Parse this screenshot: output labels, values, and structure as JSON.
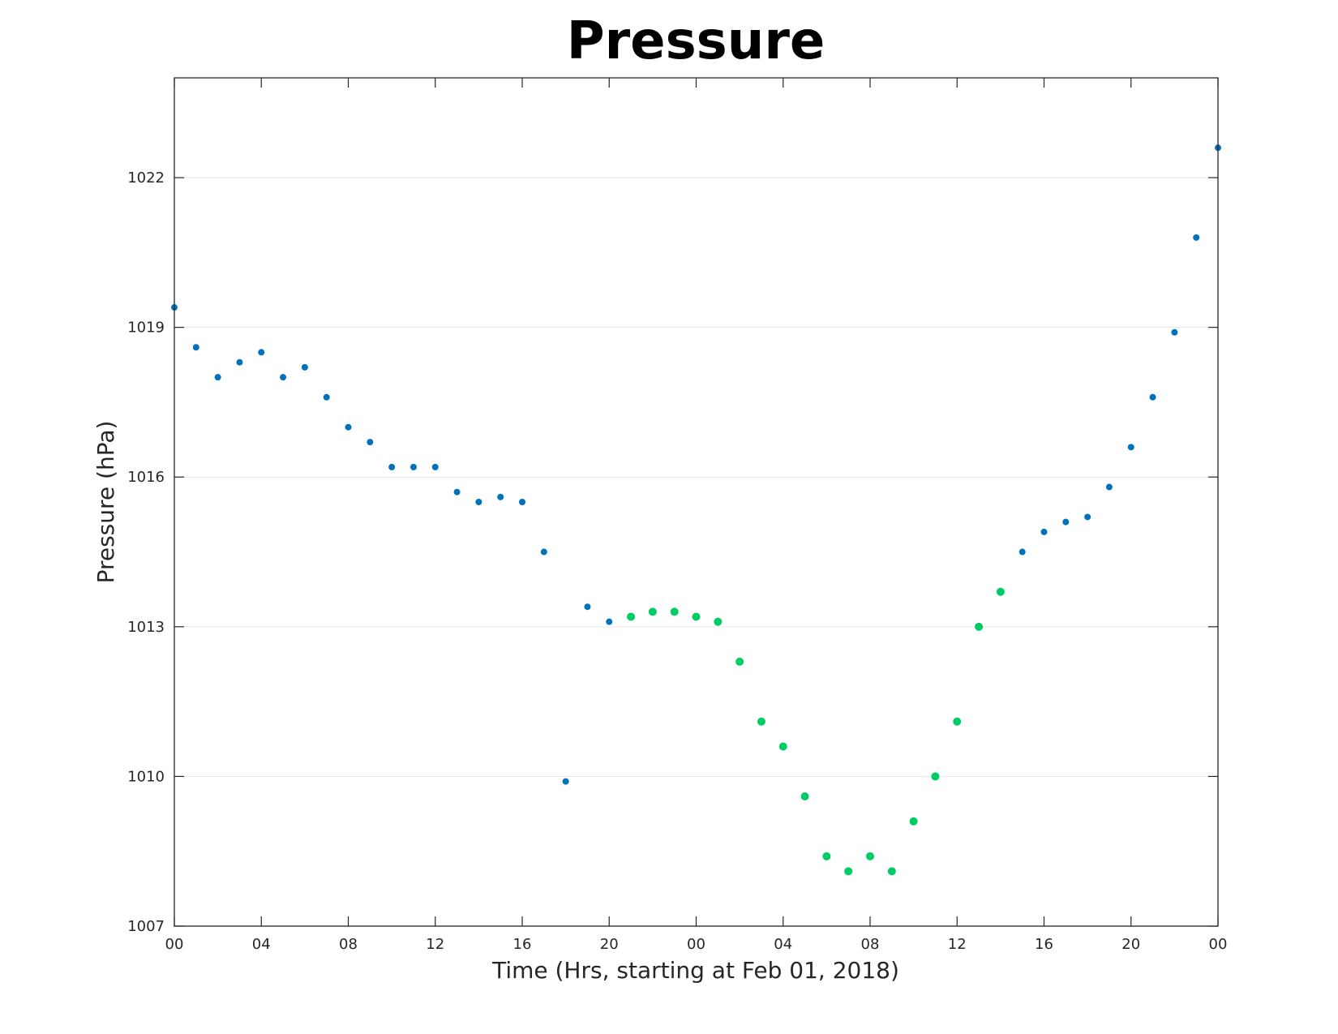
{
  "chart_data": {
    "type": "scatter",
    "title": "Pressure",
    "xlabel": "Time (Hrs, starting at Feb 01, 2018)",
    "ylabel": "Pressure (hPa)",
    "xlim": [
      0,
      48
    ],
    "ylim": [
      1007,
      1024
    ],
    "grid": "horizontal",
    "x_ticks": [
      {
        "value": 0,
        "label": "00"
      },
      {
        "value": 4,
        "label": "04"
      },
      {
        "value": 8,
        "label": "08"
      },
      {
        "value": 12,
        "label": "12"
      },
      {
        "value": 16,
        "label": "16"
      },
      {
        "value": 20,
        "label": "20"
      },
      {
        "value": 24,
        "label": "00"
      },
      {
        "value": 28,
        "label": "04"
      },
      {
        "value": 32,
        "label": "08"
      },
      {
        "value": 36,
        "label": "12"
      },
      {
        "value": 40,
        "label": "16"
      },
      {
        "value": 44,
        "label": "20"
      },
      {
        "value": 48,
        "label": "00"
      }
    ],
    "y_ticks": [
      {
        "value": 1007,
        "label": "1007"
      },
      {
        "value": 1010,
        "label": "1010"
      },
      {
        "value": 1013,
        "label": "1013"
      },
      {
        "value": 1016,
        "label": "1016"
      },
      {
        "value": 1019,
        "label": "1019"
      },
      {
        "value": 1022,
        "label": "1022"
      }
    ],
    "series": [
      {
        "color": "#0072BD",
        "points": [
          [
            0,
            1019.4
          ],
          [
            1,
            1018.6
          ],
          [
            2,
            1018.0
          ],
          [
            3,
            1018.3
          ],
          [
            4,
            1018.5
          ],
          [
            5,
            1018.0
          ],
          [
            6,
            1018.2
          ],
          [
            7,
            1017.6
          ],
          [
            8,
            1017.0
          ],
          [
            9,
            1016.7
          ],
          [
            10,
            1016.2
          ],
          [
            11,
            1016.2
          ],
          [
            12,
            1016.2
          ],
          [
            13,
            1015.7
          ],
          [
            14,
            1015.5
          ],
          [
            15,
            1015.6
          ],
          [
            16,
            1015.5
          ],
          [
            17,
            1014.5
          ],
          [
            18,
            1009.9
          ],
          [
            19,
            1013.4
          ],
          [
            20,
            1013.1
          ],
          [
            39,
            1014.5
          ],
          [
            40,
            1014.9
          ],
          [
            41,
            1015.1
          ],
          [
            42,
            1015.2
          ],
          [
            43,
            1015.8
          ],
          [
            44,
            1016.6
          ],
          [
            45,
            1017.6
          ],
          [
            46,
            1018.9
          ],
          [
            47,
            1020.8
          ],
          [
            48,
            1022.6
          ]
        ]
      },
      {
        "color": "#00CC66",
        "points": [
          [
            21,
            1013.2
          ],
          [
            22,
            1013.3
          ],
          [
            23,
            1013.3
          ],
          [
            24,
            1013.2
          ],
          [
            25,
            1013.1
          ],
          [
            26,
            1012.3
          ],
          [
            27,
            1011.1
          ],
          [
            28,
            1010.6
          ],
          [
            29,
            1009.6
          ],
          [
            30,
            1008.4
          ],
          [
            31,
            1008.1
          ],
          [
            32,
            1008.4
          ],
          [
            33,
            1008.1
          ],
          [
            34,
            1009.1
          ],
          [
            35,
            1010.0
          ],
          [
            36,
            1011.1
          ],
          [
            37,
            1013.0
          ],
          [
            38,
            1013.7
          ]
        ]
      }
    ]
  }
}
